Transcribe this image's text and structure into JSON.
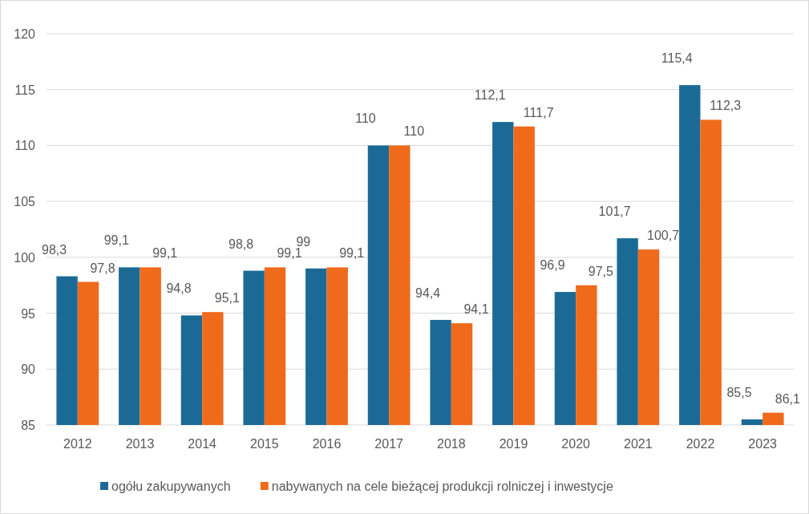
{
  "chart_data": {
    "type": "bar",
    "categories": [
      "2012",
      "2013",
      "2014",
      "2015",
      "2016",
      "2017",
      "2018",
      "2019",
      "2020",
      "2021",
      "2022",
      "2023"
    ],
    "series": [
      {
        "name": "ogółu zakupywanych",
        "color": "#1b6a96",
        "values": [
          98.3,
          99.1,
          94.8,
          98.8,
          99,
          110,
          94.4,
          112.1,
          96.9,
          101.7,
          115.4,
          85.5
        ],
        "value_labels": [
          "98,3",
          "99,1",
          "94,8",
          "98,8",
          "99",
          "110",
          "94,4",
          "112,1",
          "96,9",
          "101,7",
          "115,4",
          "85,5"
        ]
      },
      {
        "name": "nabywanych na cele bieżącej produkcji rolniczej i inwestycje",
        "color": "#f06a1c",
        "values": [
          97.8,
          99.1,
          95.1,
          99.1,
          99.1,
          110,
          94.1,
          111.7,
          97.5,
          100.7,
          112.3,
          86.1
        ],
        "value_labels": [
          "97,8",
          "99,1",
          "95,1",
          "99,1",
          "99,1",
          "110",
          "94,1",
          "111,7",
          "97,5",
          "100,7",
          "112,3",
          "86,1"
        ]
      }
    ],
    "ylim": [
      85,
      120
    ],
    "yticks": [
      85,
      90,
      95,
      100,
      105,
      110,
      115,
      120
    ],
    "grid": "y",
    "legend": "bottom"
  }
}
